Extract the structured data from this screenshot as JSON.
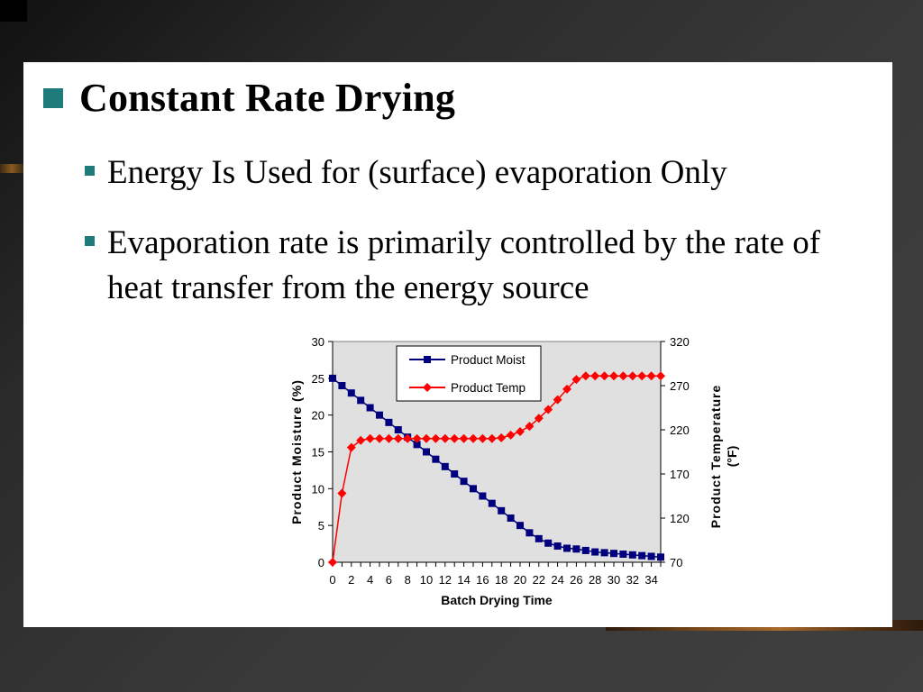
{
  "slide": {
    "heading": "Constant Rate Drying",
    "bullets": [
      "Energy Is Used for (surface) evaporation Only",
      "Evaporation rate is primarily controlled by the rate of heat transfer from the energy source"
    ],
    "colors": {
      "bullet": "#1f7a7a",
      "background": "#ffffff"
    }
  },
  "chart_data": {
    "type": "line",
    "xlabel": "Batch Drying Time",
    "ylabel": "Product Moisture (%)",
    "y2label_line1": "Product Temperature",
    "y2label_line2": "(°F)",
    "xlim": [
      0,
      35
    ],
    "ylim": [
      0,
      30
    ],
    "y2lim": [
      70,
      320
    ],
    "x_ticks": [
      "0",
      "2",
      "4",
      "6",
      "8",
      "10",
      "12",
      "14",
      "16",
      "18",
      "20",
      "22",
      "24",
      "26",
      "28",
      "30",
      "32",
      "34"
    ],
    "y_ticks": [
      "0",
      "5",
      "10",
      "15",
      "20",
      "25",
      "30"
    ],
    "y2_ticks": [
      "70",
      "120",
      "170",
      "220",
      "270",
      "320"
    ],
    "grid": {
      "horizontal": false,
      "vertical": false
    },
    "plot_background": "#e0e0e0",
    "legend_position": "top-center",
    "x": [
      0,
      1,
      2,
      3,
      4,
      5,
      6,
      7,
      8,
      9,
      10,
      11,
      12,
      13,
      14,
      15,
      16,
      17,
      18,
      19,
      20,
      21,
      22,
      23,
      24,
      25,
      26,
      27,
      28,
      29,
      30,
      31,
      32,
      33,
      34,
      35
    ],
    "series": [
      {
        "name": "Product Moist",
        "axis": "left",
        "color": "#00007f",
        "marker": "square",
        "values": [
          25,
          24,
          23,
          22,
          21,
          20,
          19,
          18,
          17,
          16,
          15,
          14,
          13,
          12,
          11,
          10,
          9,
          8,
          7,
          6,
          5,
          4,
          3.2,
          2.6,
          2.2,
          1.9,
          1.8,
          1.6,
          1.4,
          1.3,
          1.2,
          1.1,
          1.0,
          0.9,
          0.8,
          0.7
        ]
      },
      {
        "name": "Product Temp",
        "axis": "right",
        "color": "#ff0000",
        "marker": "diamond",
        "values": [
          70,
          148,
          200,
          208,
          210,
          210,
          210,
          210,
          210,
          210,
          210,
          210,
          210,
          210,
          210,
          210,
          210,
          210,
          211,
          214,
          218,
          224,
          233,
          243,
          254,
          266,
          277,
          281,
          281,
          281,
          281,
          281,
          281,
          281,
          281,
          281
        ]
      }
    ]
  }
}
